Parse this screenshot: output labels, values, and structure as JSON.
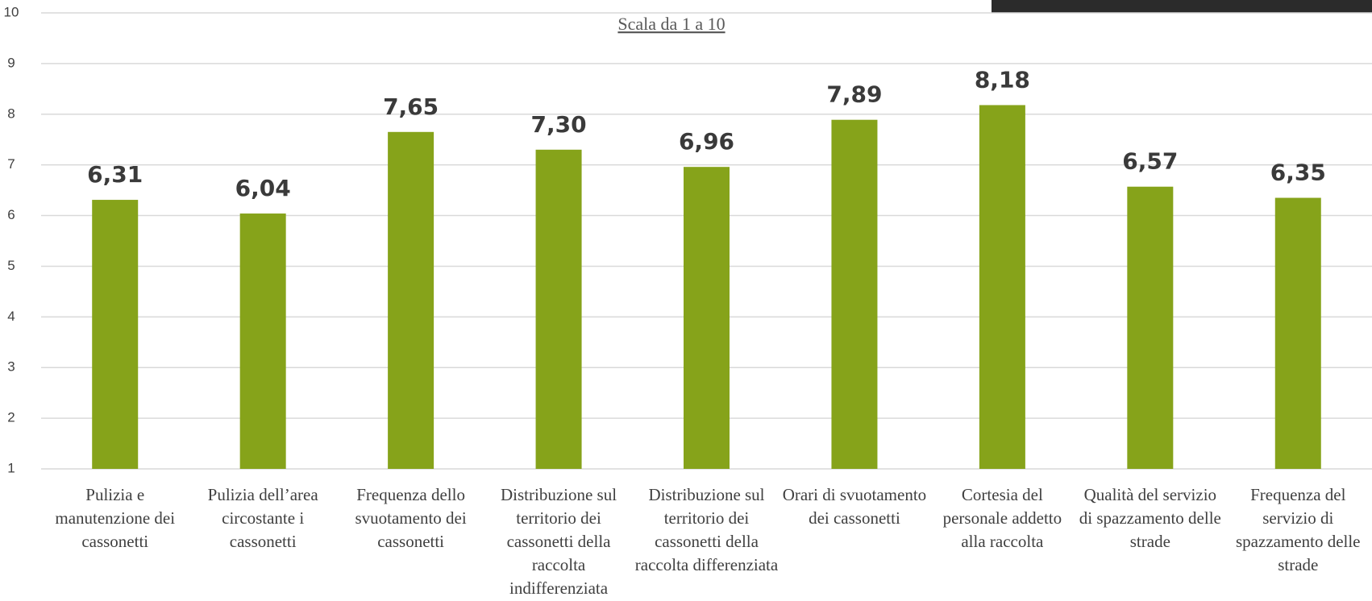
{
  "chart_data": {
    "type": "bar",
    "subtitle": "Scala da 1 a 10",
    "categories": [
      "Pulizia e manutenzione dei cassonetti",
      "Pulizia dell’area circostante i cassonetti",
      "Frequenza dello svuotamento dei cassonetti",
      "Distribuzione sul territorio dei cassonetti della raccolta indifferenziata",
      "Distribuzione sul territorio dei cassonetti della raccolta differenziata",
      "Orari di svuotamento dei cassonetti",
      "Cortesia del personale addetto alla raccolta",
      "Qualità del servizio di spazzamento delle strade",
      "Frequenza del servizio di spazzamento delle strade"
    ],
    "values": [
      6.31,
      6.04,
      7.65,
      7.3,
      6.96,
      7.89,
      8.18,
      6.57,
      6.35
    ],
    "value_labels": [
      "6,31",
      "6,04",
      "7,65",
      "7,30",
      "6,96",
      "7,89",
      "8,18",
      "6,57",
      "6,35"
    ],
    "color": "#86a31a",
    "ylim": [
      1,
      10
    ],
    "yticks": [
      1,
      2,
      3,
      4,
      5,
      6,
      7,
      8,
      9,
      10
    ],
    "grid": true
  }
}
